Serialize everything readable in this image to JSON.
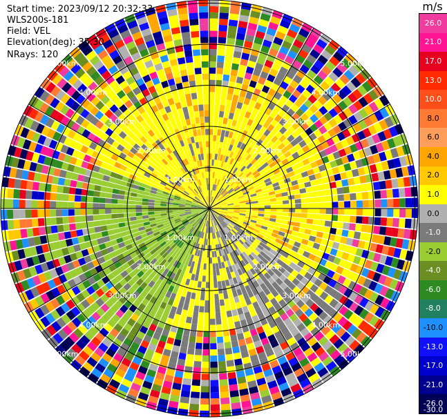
{
  "info": {
    "start_time": "Start time: 2023/09/12 20:32:33",
    "station": "WLS200s-181",
    "field": "Field: VEL",
    "elevation": "Elevation(deg): 35.30",
    "nrays": "NRays: 120"
  },
  "colorbar": {
    "unit": "m/s",
    "ticks": [
      "26.0",
      "21.0",
      "17.0",
      "13.0",
      "10.0",
      "8.0",
      "6.0",
      "4.0",
      "2.0",
      "1.0",
      "0.0",
      "-1.0",
      "-2.0",
      "-4.0",
      "-6.0",
      "-8.0",
      "-10.0",
      "-13.0",
      "-17.0",
      "-21.0",
      "-26.0",
      "-30.0"
    ],
    "segment_colors": [
      "#f03c9e",
      "#ff1493",
      "#e8001e",
      "#ff2a00",
      "#ff4e1a",
      "#ff7a33",
      "#ff9e5a",
      "#ffa500",
      "#ffc800",
      "#ffff00",
      "#b0b0b0",
      "#7a7a7a",
      "#9acd32",
      "#6b8e23",
      "#2e8b22",
      "#208060",
      "#1e90ff",
      "#1010ff",
      "#0000cd",
      "#000090",
      "#000055"
    ]
  },
  "chart_data": {
    "type": "ppi",
    "title": "",
    "field": "VEL",
    "unit": "m/s",
    "elevation_deg": 35.3,
    "n_rays": 120,
    "range_rings_km": [
      1.0,
      2.0,
      3.0,
      4.0,
      5.0
    ],
    "range_ring_labels": [
      "1.00km",
      "2.00km",
      "3.00km",
      "4.00km",
      "5.00km"
    ],
    "spokes_deg": [
      0,
      30,
      60,
      90,
      120,
      150
    ],
    "colorbar_range": [
      -30,
      26
    ],
    "dominant_pattern": {
      "inner_positive_sector": "north to east (yellow/orange, +1 to +4 m/s)",
      "inner_negative_sector": "south-west (green, -1 to -4 m/s)",
      "outer_rings": "noise, mixed colors"
    }
  }
}
